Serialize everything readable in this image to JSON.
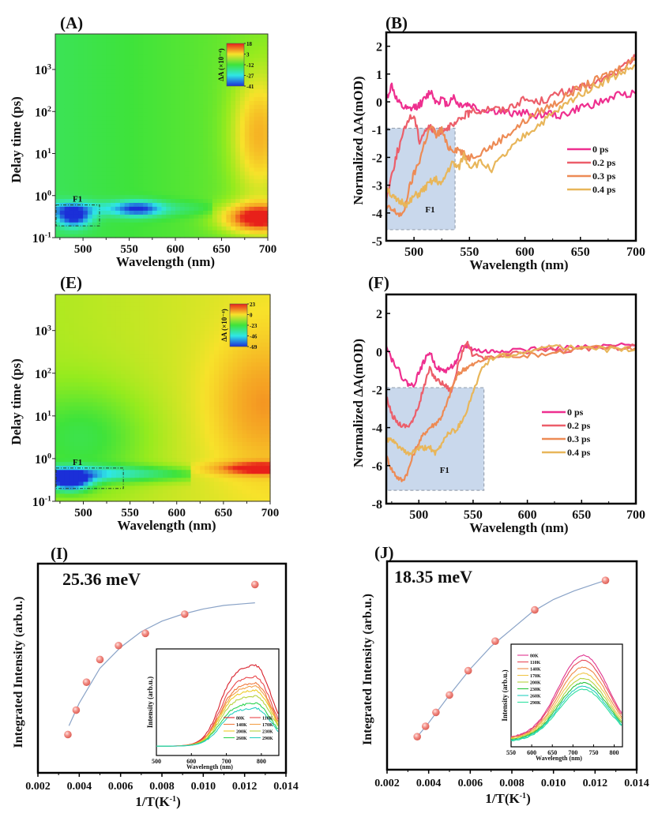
{
  "chart_data": [
    {
      "panel": "(A)",
      "type": "heatmap",
      "title": "",
      "xlabel": "Wavelength (nm)",
      "ylabel": "Delay time (ps)",
      "xlim": [
        470,
        700
      ],
      "ylim": [
        0.1,
        7000
      ],
      "yscale": "log",
      "xticks": [
        500,
        550,
        600,
        650,
        700
      ],
      "yticks": [
        {
          "value": 0.1,
          "base": "10",
          "exp": "-1"
        },
        {
          "value": 1,
          "base": "10",
          "exp": "0"
        },
        {
          "value": 10,
          "base": "10",
          "exp": "1"
        },
        {
          "value": 100,
          "base": "10",
          "exp": "2"
        },
        {
          "value": 1000,
          "base": "10",
          "exp": "3"
        }
      ],
      "colorbar": {
        "label": "ΔA (×10⁻⁴)",
        "ticks": [
          "18",
          "3",
          "-12",
          "-27",
          "-41"
        ],
        "range": [
          -41,
          18
        ]
      },
      "background_value": -10,
      "features": [
        {
          "type": "bleach",
          "center_nm": 490,
          "center_ps": 0.33,
          "width_nm": 18,
          "width_dec": 0.25,
          "value": -41
        },
        {
          "type": "bleach",
          "center_nm": 560,
          "center_ps": 0.5,
          "width_nm": 25,
          "width_dec": 0.18,
          "value": -33
        },
        {
          "type": "band",
          "from_nm": 470,
          "to_nm": 640,
          "center_ps": 0.5,
          "value": -22
        },
        {
          "type": "absorption",
          "center_nm": 690,
          "center_ps": 0.3,
          "width_nm": 40,
          "width_dec": 0.35,
          "value": 18
        },
        {
          "type": "absorption",
          "center_nm": 690,
          "center_ps": 30,
          "width_nm": 30,
          "width_dec": 1.5,
          "value": 6
        }
      ],
      "box": {
        "label": "F1",
        "x": [
          470,
          517
        ],
        "y": [
          0.19,
          0.6
        ]
      }
    },
    {
      "panel": "(B)",
      "type": "line",
      "xlabel": "Wavelength (nm)",
      "ylabel": "Normalized ΔA(mOD)",
      "xlim": [
        475,
        700
      ],
      "ylim": [
        -5,
        2.5
      ],
      "xticks": [
        500,
        550,
        600,
        650,
        700
      ],
      "yticks": [
        2,
        1,
        0,
        -1,
        -2,
        -3,
        -4,
        -5
      ],
      "legend": {
        "position": "center-right"
      },
      "series": [
        {
          "name": "0 ps",
          "color": "#ee2f8f",
          "x": [
            475,
            480,
            485,
            490,
            495,
            500,
            505,
            510,
            515,
            520,
            525,
            530,
            535,
            540,
            545,
            550,
            560,
            570,
            580,
            590,
            600,
            610,
            620,
            630,
            640,
            650,
            660,
            670,
            680,
            690,
            700
          ],
          "y": [
            0.1,
            0.6,
            0.0,
            -0.2,
            -0.3,
            -0.2,
            -0.1,
            0.1,
            0.4,
            0.0,
            0.1,
            -0.1,
            0.2,
            -0.1,
            -0.1,
            -0.1,
            -0.3,
            -0.3,
            -0.4,
            -0.4,
            -0.4,
            -0.5,
            -0.4,
            -0.5,
            -0.4,
            -0.2,
            -0.1,
            0.0,
            0.2,
            0.3,
            0.3
          ]
        },
        {
          "name": "0.2 ps",
          "color": "#ec5e6a",
          "x": [
            475,
            480,
            485,
            490,
            495,
            500,
            505,
            510,
            515,
            520,
            525,
            530,
            535,
            540,
            545,
            550,
            560,
            570,
            580,
            590,
            600,
            610,
            620,
            630,
            640,
            650,
            660,
            670,
            680,
            690,
            700
          ],
          "y": [
            -3.5,
            -2.6,
            -1.8,
            -1.2,
            -0.6,
            -0.5,
            -1.4,
            -1.0,
            -0.9,
            -1.2,
            -1.0,
            -0.9,
            -0.9,
            -0.7,
            -0.5,
            -0.4,
            -0.3,
            -0.2,
            -0.3,
            -0.1,
            0.1,
            0.0,
            0.1,
            0.3,
            0.4,
            0.5,
            0.6,
            0.8,
            1.0,
            1.3,
            1.6
          ]
        },
        {
          "name": "0.3 ps",
          "color": "#ed8b55",
          "x": [
            475,
            480,
            485,
            490,
            495,
            500,
            505,
            510,
            515,
            520,
            525,
            530,
            535,
            540,
            545,
            550,
            560,
            570,
            580,
            590,
            600,
            610,
            620,
            630,
            640,
            650,
            660,
            670,
            680,
            690,
            700
          ],
          "y": [
            -3.8,
            -3.9,
            -4.0,
            -4.1,
            -3.2,
            -2.6,
            -2.1,
            -1.4,
            -0.9,
            -1.2,
            -1.0,
            -1.6,
            -1.7,
            -1.7,
            -1.9,
            -2.0,
            -1.8,
            -1.6,
            -1.3,
            -1.0,
            -0.7,
            -0.4,
            -0.2,
            0.0,
            0.3,
            0.5,
            0.7,
            0.9,
            1.1,
            1.3,
            1.6
          ]
        },
        {
          "name": "0.4 ps",
          "color": "#e8b65a",
          "x": [
            475,
            480,
            485,
            490,
            495,
            500,
            505,
            510,
            515,
            520,
            525,
            530,
            535,
            540,
            545,
            550,
            560,
            570,
            580,
            590,
            600,
            610,
            620,
            630,
            640,
            650,
            660,
            670,
            680,
            690,
            700
          ],
          "y": [
            -3.0,
            -3.4,
            -3.6,
            -3.6,
            -3.7,
            -3.4,
            -3.3,
            -3.1,
            -2.9,
            -2.8,
            -3.0,
            -2.5,
            -2.2,
            -2.4,
            -1.9,
            -2.3,
            -2.2,
            -2.4,
            -2.0,
            -1.6,
            -1.2,
            -0.9,
            -0.6,
            -0.3,
            0.0,
            0.3,
            0.5,
            0.7,
            0.9,
            1.1,
            1.3
          ]
        }
      ],
      "box": {
        "label": "F1",
        "x": [
          475,
          537
        ],
        "y": [
          -4.6,
          -0.95
        ]
      }
    },
    {
      "panel": "(E)",
      "type": "heatmap",
      "title": "",
      "xlabel": "Wavelength (nm)",
      "ylabel": "Delay time (ps)",
      "xlim": [
        470,
        700
      ],
      "ylim": [
        0.1,
        7000
      ],
      "yscale": "log",
      "xticks": [
        500,
        550,
        600,
        650,
        700
      ],
      "yticks": [
        {
          "value": 0.1,
          "base": "10",
          "exp": "-1"
        },
        {
          "value": 1,
          "base": "10",
          "exp": "0"
        },
        {
          "value": 10,
          "base": "10",
          "exp": "1"
        },
        {
          "value": 100,
          "base": "10",
          "exp": "2"
        },
        {
          "value": 1000,
          "base": "10",
          "exp": "3"
        }
      ],
      "colorbar": {
        "label": "ΔA (×10⁻⁴)",
        "ticks": [
          "23",
          "0",
          "-23",
          "-46",
          "-69"
        ],
        "range": [
          -69,
          23
        ]
      },
      "background_value": -5,
      "features": [
        {
          "type": "bleach",
          "center_nm": 485,
          "center_ps": 0.3,
          "width_nm": 22,
          "width_dec": 0.22,
          "value": -69
        },
        {
          "type": "band",
          "from_nm": 470,
          "to_nm": 615,
          "center_ps": 0.45,
          "value": -45
        },
        {
          "type": "bleach",
          "center_nm": 500,
          "center_ps": 3,
          "width_nm": 70,
          "width_dec": 1.2,
          "value": -22
        },
        {
          "type": "absorption",
          "center_nm": 690,
          "center_ps": 0.6,
          "width_nm": 50,
          "width_dec": 0.15,
          "value": 23
        },
        {
          "type": "absorption",
          "center_nm": 690,
          "center_ps": 20,
          "width_nm": 55,
          "width_dec": 1.6,
          "value": 10
        }
      ],
      "box": {
        "label": "F1",
        "x": [
          470,
          542
        ],
        "y": [
          0.2,
          0.6
        ]
      }
    },
    {
      "panel": "(F)",
      "type": "line",
      "xlabel": "Wavelength (nm)",
      "ylabel": "Normalized ΔA(mOD)",
      "xlim": [
        470,
        700
      ],
      "ylim": [
        -8,
        3
      ],
      "xticks": [
        500,
        550,
        600,
        650,
        700
      ],
      "yticks": [
        2,
        0,
        -2,
        -4,
        -6,
        -8
      ],
      "legend": {
        "position": "center-right"
      },
      "series": [
        {
          "name": "0 ps",
          "color": "#ee2f8f",
          "x": [
            470,
            475,
            480,
            485,
            490,
            495,
            500,
            505,
            510,
            515,
            520,
            525,
            530,
            535,
            540,
            545,
            550,
            560,
            570,
            580,
            600,
            620,
            640,
            660,
            680,
            700
          ],
          "y": [
            0.4,
            -0.4,
            -0.8,
            -1.4,
            -1.7,
            -1.8,
            -1.1,
            -0.5,
            0.0,
            -0.7,
            -1.0,
            -1.0,
            -0.8,
            -0.5,
            0.2,
            0.3,
            0.1,
            0.0,
            0.0,
            0.1,
            0.1,
            0.2,
            0.2,
            0.2,
            0.3,
            0.3
          ]
        },
        {
          "name": "0.2 ps",
          "color": "#ec5e6a",
          "x": [
            470,
            475,
            480,
            485,
            490,
            495,
            500,
            505,
            510,
            515,
            520,
            525,
            530,
            535,
            540,
            545,
            550,
            560,
            570,
            580,
            600,
            620,
            640,
            660,
            680,
            700
          ],
          "y": [
            -2.4,
            -3.3,
            -3.7,
            -3.9,
            -3.9,
            -3.6,
            -2.8,
            -1.8,
            -0.9,
            -1.4,
            -1.6,
            -1.8,
            -2.1,
            -1.0,
            0.0,
            0.4,
            -0.2,
            -0.4,
            -0.3,
            -0.2,
            0.0,
            0.1,
            0.0,
            0.2,
            0.2,
            0.3
          ]
        },
        {
          "name": "0.3 ps",
          "color": "#ed8b55",
          "x": [
            470,
            475,
            480,
            485,
            490,
            495,
            500,
            505,
            510,
            515,
            520,
            525,
            530,
            535,
            540,
            545,
            550,
            560,
            570,
            580,
            600,
            620,
            640,
            660,
            680,
            700
          ],
          "y": [
            -5.5,
            -6.2,
            -6.6,
            -6.8,
            -6.3,
            -5.4,
            -4.8,
            -4.3,
            -4.0,
            -3.8,
            -3.5,
            -2.9,
            -2.0,
            -1.3,
            -1.0,
            -0.8,
            -0.7,
            -0.4,
            -0.3,
            -0.2,
            -0.2,
            -0.1,
            0.1,
            0.2,
            0.2,
            0.2
          ]
        },
        {
          "name": "0.4 ps",
          "color": "#e8b65a",
          "x": [
            470,
            475,
            480,
            485,
            490,
            495,
            500,
            505,
            510,
            515,
            520,
            525,
            530,
            535,
            540,
            545,
            550,
            560,
            570,
            580,
            600,
            620,
            640,
            660,
            680,
            700
          ],
          "y": [
            -4.6,
            -4.7,
            -4.9,
            -5.2,
            -5.4,
            -5.3,
            -5.1,
            -5.1,
            -5.0,
            -5.4,
            -5.0,
            -4.4,
            -4.2,
            -4.1,
            -3.6,
            -3.0,
            -2.1,
            -0.7,
            -0.3,
            -0.2,
            -0.1,
            0.4,
            0.2,
            0.1,
            0.1,
            0.1
          ]
        }
      ],
      "box": {
        "label": "F1",
        "x": [
          470,
          560
        ],
        "y": [
          -7.3,
          -1.9
        ]
      }
    },
    {
      "panel": "(I)",
      "type": "scatter",
      "annotation": "25.36 meV",
      "xlabel": "1/T(K⁻¹)",
      "ylabel": "Integrated Intensity (arb.u.)",
      "xlim": [
        0.002,
        0.014
      ],
      "ylim": [
        0,
        1.0
      ],
      "xticks": [
        "0.002",
        "0.004",
        "0.006",
        "0.008",
        "0.010",
        "0.012",
        "0.014"
      ],
      "points": {
        "x": [
          0.00345,
          0.00385,
          0.00435,
          0.005,
          0.0059,
          0.0072,
          0.0091,
          0.0125
        ],
        "y": [
          0.12,
          0.26,
          0.42,
          0.55,
          0.63,
          0.7,
          0.81,
          0.98
        ]
      },
      "fit": {
        "x": [
          0.0035,
          0.004,
          0.005,
          0.006,
          0.007,
          0.008,
          0.009,
          0.01,
          0.011,
          0.012,
          0.0125
        ],
        "y": [
          0.17,
          0.3,
          0.5,
          0.62,
          0.71,
          0.77,
          0.81,
          0.84,
          0.86,
          0.87,
          0.875
        ]
      },
      "point_color": "#f07f78",
      "fit_color": "#8aa3c7",
      "inset": {
        "type": "line",
        "xlabel": "Wavelength (nm)",
        "ylabel": "Intensity (arb.u.)",
        "xlim": [
          500,
          850
        ],
        "xticks": [
          500,
          600,
          700,
          800
        ],
        "legend": {
          "position": "bottom-right",
          "columns": 2
        },
        "peak_nm": 780,
        "series": [
          {
            "name": "80K",
            "color": "#d9232e",
            "peak": 1.0
          },
          {
            "name": "110K",
            "color": "#e9474b",
            "peak": 0.86
          },
          {
            "name": "140K",
            "color": "#f07a3e",
            "peak": 0.78
          },
          {
            "name": "170K",
            "color": "#f3a14a",
            "peak": 0.74
          },
          {
            "name": "200K",
            "color": "#eecb25",
            "peak": 0.69
          },
          {
            "name": "230K",
            "color": "#b6d23e",
            "peak": 0.62
          },
          {
            "name": "260K",
            "color": "#2ed452",
            "peak": 0.53
          },
          {
            "name": "290K",
            "color": "#27cfc0",
            "peak": 0.47
          }
        ]
      }
    },
    {
      "panel": "(J)",
      "type": "scatter",
      "annotation": "18.35 meV",
      "xlabel": "1/T(K⁻¹)",
      "ylabel": "Integrated Intensity (arb.u.)",
      "xlim": [
        0.002,
        0.014
      ],
      "ylim": [
        0,
        1.0
      ],
      "xticks": [
        "0.002",
        "0.004",
        "0.006",
        "0.008",
        "0.010",
        "0.012",
        "0.014"
      ],
      "points": {
        "x": [
          0.00345,
          0.00385,
          0.00435,
          0.005,
          0.0059,
          0.0072,
          0.0091,
          0.0125
        ],
        "y": [
          0.09,
          0.15,
          0.23,
          0.33,
          0.47,
          0.64,
          0.82,
          0.99
        ]
      },
      "fit": {
        "x": [
          0.00345,
          0.004,
          0.005,
          0.006,
          0.007,
          0.008,
          0.009,
          0.01,
          0.011,
          0.012,
          0.0125
        ],
        "y": [
          0.09,
          0.17,
          0.33,
          0.48,
          0.61,
          0.71,
          0.81,
          0.88,
          0.93,
          0.97,
          0.99
        ]
      },
      "point_color": "#f07f78",
      "fit_color": "#8aa3c7",
      "inset": {
        "type": "line",
        "xlabel": "Wavelength (nm)",
        "ylabel": "Intensity (arb.u.)",
        "xlim": [
          550,
          820
        ],
        "xticks": [
          550,
          600,
          650,
          700,
          750,
          800
        ],
        "legend": {
          "position": "top-left",
          "columns": 1
        },
        "peak_nm": 725,
        "series": [
          {
            "name": "80K",
            "color": "#e0358f",
            "peak": 1.0
          },
          {
            "name": "110K",
            "color": "#e84a5a",
            "peak": 0.94
          },
          {
            "name": "140K",
            "color": "#ef8a46",
            "peak": 0.86
          },
          {
            "name": "170K",
            "color": "#f1c64a",
            "peak": 0.79
          },
          {
            "name": "200K",
            "color": "#b6d23e",
            "peak": 0.73
          },
          {
            "name": "230K",
            "color": "#27c43a",
            "peak": 0.68
          },
          {
            "name": "260K",
            "color": "#27cfc0",
            "peak": 0.64
          },
          {
            "name": "290K",
            "color": "#2fe0a0",
            "peak": 0.61
          }
        ]
      }
    }
  ]
}
